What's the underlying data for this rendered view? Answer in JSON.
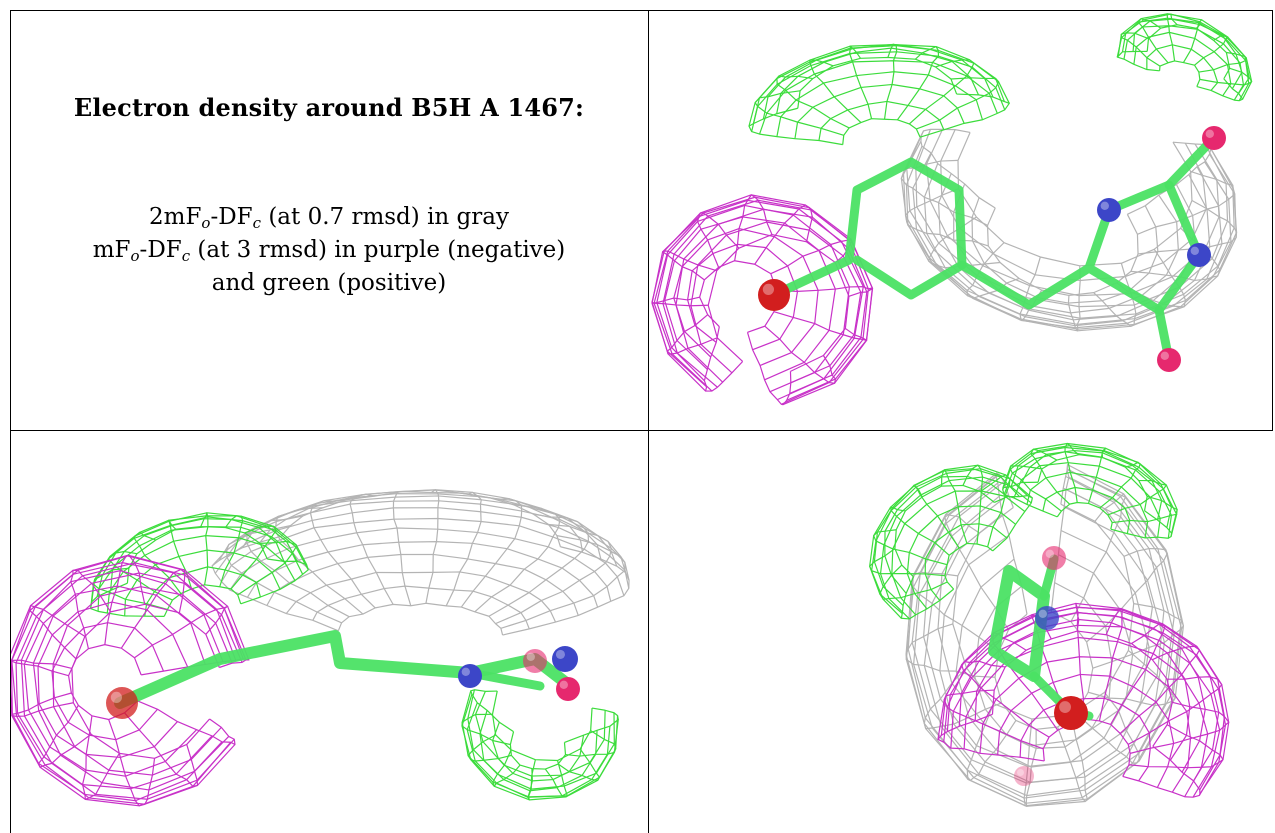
{
  "header": {
    "title": "Electron density around B5H A 1467:"
  },
  "legend": {
    "gray_prefix": "2mF",
    "gray_sub_o": "o",
    "gray_mid": "-DF",
    "gray_sub_c": "c",
    "gray_rest": " (at 0.7 rmsd) in gray",
    "diff_prefix": "mF",
    "diff_sub_o": "o",
    "diff_mid": "-DF",
    "diff_sub_c": "c",
    "diff_rest": " (at 3 rmsd) in purple (negative)",
    "diff_line3": "and green (positive)"
  },
  "colors": {
    "gray_mesh": "#b4b4b4",
    "negative_mesh": "#c832c8",
    "positive_mesh": "#3cdc3c",
    "ligand_carbon": "#4be164",
    "oxygen": "#d21e1e",
    "nitrogen": "#3c46c8",
    "pink_oxygen": "#e6286e"
  },
  "views": [
    {
      "name": "view-top-right"
    },
    {
      "name": "view-bottom-left"
    },
    {
      "name": "view-bottom-right"
    }
  ]
}
